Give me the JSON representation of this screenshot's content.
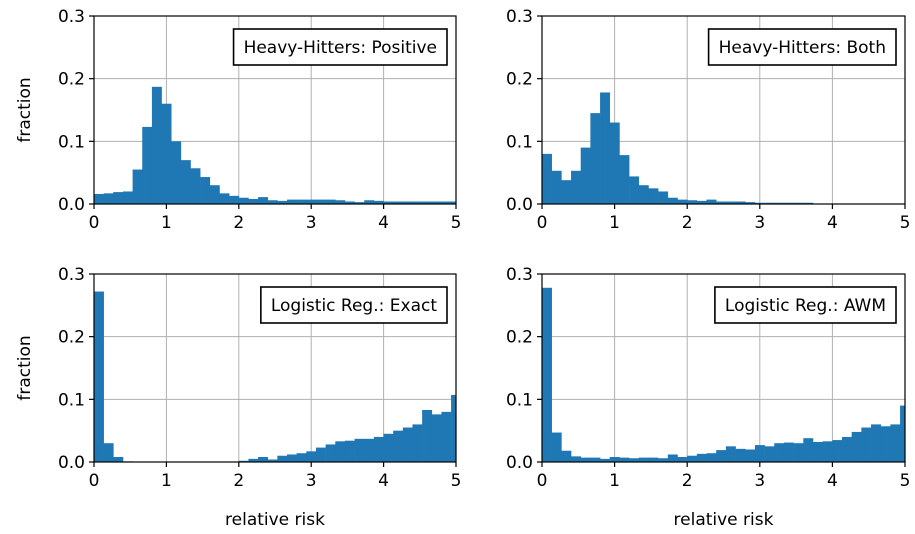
{
  "chart_data": [
    {
      "type": "bar",
      "title": "",
      "legend_text": "Heavy-Hitters: Positive",
      "legend_placement": "top-right",
      "xlabel": "",
      "ylabel": "fraction",
      "xlim": [
        0,
        5
      ],
      "ylim": [
        0,
        0.3
      ],
      "xticks": [
        "0",
        "1",
        "2",
        "3",
        "4",
        "5"
      ],
      "yticks": [
        "0.0",
        "0.1",
        "0.2",
        "0.3"
      ],
      "grid": true,
      "bin_width": 0.1333,
      "values": [
        0.016,
        0.017,
        0.019,
        0.02,
        0.055,
        0.123,
        0.187,
        0.16,
        0.1,
        0.07,
        0.057,
        0.043,
        0.03,
        0.017,
        0.013,
        0.01,
        0.008,
        0.011,
        0.006,
        0.005,
        0.007,
        0.007,
        0.007,
        0.007,
        0.007,
        0.006,
        0.004,
        0.003,
        0.006,
        0.005,
        0.004,
        0.004,
        0.004,
        0.004,
        0.004,
        0.004,
        0.004,
        0.004
      ]
    },
    {
      "type": "bar",
      "title": "",
      "legend_text": "Heavy-Hitters: Both",
      "legend_placement": "top-right",
      "xlabel": "",
      "ylabel": "",
      "xlim": [
        0,
        5
      ],
      "ylim": [
        0,
        0.3
      ],
      "xticks": [
        "0",
        "1",
        "2",
        "3",
        "4",
        "5"
      ],
      "yticks": [
        "0.0",
        "0.1",
        "0.2",
        "0.3"
      ],
      "grid": true,
      "bin_width": 0.1333,
      "values": [
        0.08,
        0.053,
        0.038,
        0.053,
        0.09,
        0.145,
        0.178,
        0.13,
        0.078,
        0.044,
        0.03,
        0.025,
        0.02,
        0.01,
        0.007,
        0.006,
        0.005,
        0.007,
        0.004,
        0.004,
        0.004,
        0.003,
        0.002,
        0.002,
        0.002,
        0.002,
        0.002,
        0.002,
        0,
        0,
        0,
        0,
        0,
        0,
        0,
        0,
        0,
        0
      ]
    },
    {
      "type": "bar",
      "title": "",
      "legend_text": "Logistic Reg.: Exact",
      "legend_placement": "top-right",
      "xlabel": "relative risk",
      "ylabel": "fraction",
      "xlim": [
        0,
        5
      ],
      "ylim": [
        0,
        0.3
      ],
      "xticks": [
        "0",
        "1",
        "2",
        "3",
        "4",
        "5"
      ],
      "yticks": [
        "0.0",
        "0.1",
        "0.2",
        "0.3"
      ],
      "grid": true,
      "bin_width": 0.1333,
      "values": [
        0.272,
        0.03,
        0.008,
        0.001,
        0.0005,
        0.0005,
        0.0005,
        0.0005,
        0.0005,
        0.0005,
        0.0005,
        0.0005,
        0.0005,
        0.0005,
        0.0005,
        0.002,
        0.005,
        0.008,
        0.004,
        0.01,
        0.012,
        0.014,
        0.017,
        0.023,
        0.028,
        0.033,
        0.034,
        0.037,
        0.037,
        0.04,
        0.045,
        0.05,
        0.055,
        0.06,
        0.083,
        0.076,
        0.08,
        0.107
      ]
    },
    {
      "type": "bar",
      "title": "",
      "legend_text": "Logistic Reg.: AWM",
      "legend_placement": "top-right",
      "xlabel": "relative risk",
      "ylabel": "",
      "xlim": [
        0,
        5
      ],
      "ylim": [
        0,
        0.3
      ],
      "xticks": [
        "0",
        "1",
        "2",
        "3",
        "4",
        "5"
      ],
      "yticks": [
        "0.0",
        "0.1",
        "0.2",
        "0.3"
      ],
      "grid": true,
      "bin_width": 0.1333,
      "values": [
        0.278,
        0.047,
        0.018,
        0.009,
        0.007,
        0.007,
        0.005,
        0.008,
        0.007,
        0.006,
        0.007,
        0.007,
        0.006,
        0.012,
        0.008,
        0.01,
        0.013,
        0.014,
        0.019,
        0.025,
        0.021,
        0.02,
        0.027,
        0.025,
        0.03,
        0.031,
        0.03,
        0.038,
        0.032,
        0.033,
        0.035,
        0.04,
        0.048,
        0.055,
        0.06,
        0.057,
        0.06,
        0.09
      ]
    }
  ]
}
